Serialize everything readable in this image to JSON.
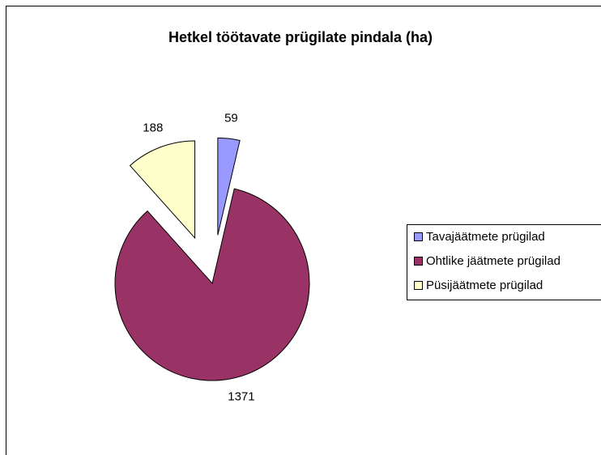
{
  "chart_data": {
    "type": "pie",
    "title": "Hetkel töötavate prügilate pindala (ha)",
    "categories": [
      "Tavajäätmete prügilad",
      "Ohtlike jäätmete prügilad",
      "Püsijäätmete prügilad"
    ],
    "values": [
      59,
      1371,
      188
    ],
    "colors": [
      "#9999ff",
      "#993366",
      "#ffffcc"
    ],
    "explode": [
      true,
      false,
      true
    ],
    "legend": "right"
  }
}
